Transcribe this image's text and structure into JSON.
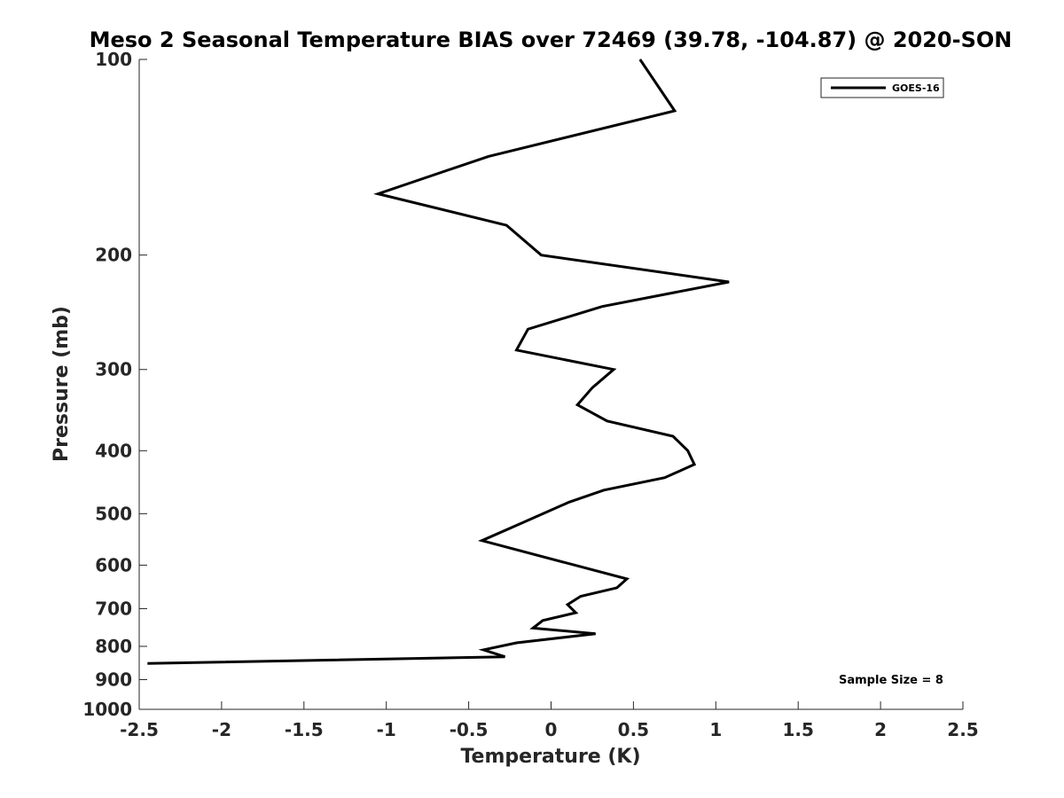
{
  "chart_data": {
    "type": "line",
    "title": "Meso 2 Seasonal Temperature BIAS over 72469 (39.78, -104.87) @ 2020-SON",
    "xlabel": "Temperature (K)",
    "ylabel": "Pressure (mb)",
    "xlim": [
      -2.5,
      2.5
    ],
    "ylim": [
      1000,
      100
    ],
    "yscale": "log",
    "y_reversed": true,
    "x_ticks": [
      -2.5,
      -2,
      -1.5,
      -1,
      -0.5,
      0,
      0.5,
      1,
      1.5,
      2,
      2.5
    ],
    "x_tick_labels": [
      "-2.5",
      "-2",
      "-1.5",
      "-1",
      "-0.5",
      "0",
      "0.5",
      "1",
      "1.5",
      "2",
      "2.5"
    ],
    "y_ticks": [
      100,
      200,
      300,
      400,
      500,
      600,
      700,
      800,
      900,
      1000
    ],
    "y_tick_labels": [
      "100",
      "200",
      "300",
      "400",
      "500",
      "600",
      "700",
      "800",
      "900",
      "1000"
    ],
    "grid": false,
    "legend_position": "top-right",
    "series": [
      {
        "name": "GOES-16",
        "color": "#000000",
        "points": [
          {
            "x": 0.54,
            "p": 100
          },
          {
            "x": 0.75,
            "p": 120
          },
          {
            "x": -0.38,
            "p": 141
          },
          {
            "x": -1.05,
            "p": 161
          },
          {
            "x": -0.27,
            "p": 180
          },
          {
            "x": -0.06,
            "p": 200
          },
          {
            "x": 1.08,
            "p": 220
          },
          {
            "x": 0.31,
            "p": 240
          },
          {
            "x": -0.14,
            "p": 260
          },
          {
            "x": -0.21,
            "p": 280
          },
          {
            "x": 0.38,
            "p": 300
          },
          {
            "x": 0.25,
            "p": 320
          },
          {
            "x": 0.16,
            "p": 340
          },
          {
            "x": 0.34,
            "p": 360
          },
          {
            "x": 0.74,
            "p": 380
          },
          {
            "x": 0.83,
            "p": 400
          },
          {
            "x": 0.87,
            "p": 420
          },
          {
            "x": 0.69,
            "p": 440
          },
          {
            "x": 0.32,
            "p": 460
          },
          {
            "x": 0.11,
            "p": 480
          },
          {
            "x": -0.2,
            "p": 520
          },
          {
            "x": -0.42,
            "p": 550
          },
          {
            "x": 0.46,
            "p": 630
          },
          {
            "x": 0.4,
            "p": 650
          },
          {
            "x": 0.18,
            "p": 670
          },
          {
            "x": 0.1,
            "p": 690
          },
          {
            "x": 0.15,
            "p": 710
          },
          {
            "x": -0.05,
            "p": 730
          },
          {
            "x": -0.11,
            "p": 750
          },
          {
            "x": 0.27,
            "p": 765
          },
          {
            "x": -0.21,
            "p": 790
          },
          {
            "x": -0.41,
            "p": 810
          },
          {
            "x": -0.28,
            "p": 830
          },
          {
            "x": -2.45,
            "p": 850
          }
        ]
      }
    ],
    "annotation": "Sample Size = 8"
  }
}
